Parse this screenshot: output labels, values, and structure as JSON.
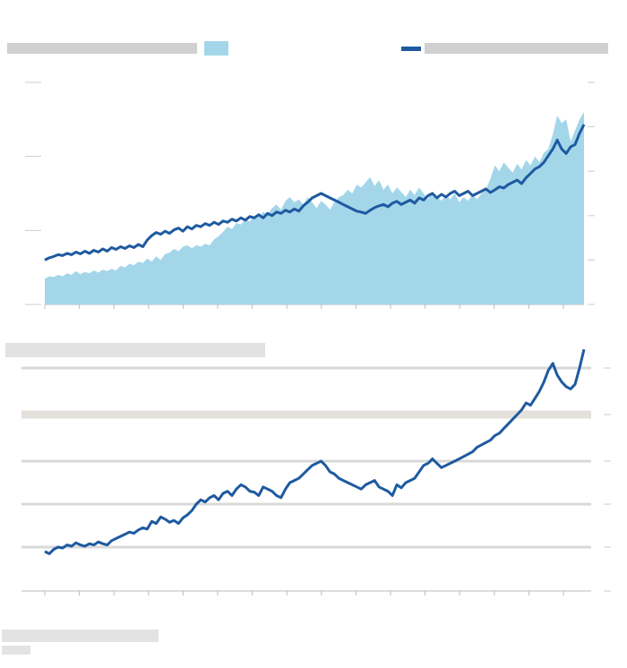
{
  "colors": {
    "background": "#ffffff",
    "area_fill": "#a4d6ea",
    "line": "#1e5aa0",
    "gridline": "#d9d9d9",
    "bottom_band": "#e4e1dc",
    "axis_text": "#555555",
    "legend_bar": "#d0d0d0",
    "title_bar": "#e2e2e2",
    "source_bar": "#e3e3e3"
  },
  "top_chart": {
    "legend": {
      "area_swatch_color": "#a4d6ea",
      "line_swatch_color": "#1e5aa0"
    },
    "left_axis_ticks": [
      "",
      "",
      "",
      ""
    ],
    "right_axis_ticks": [
      "",
      "",
      "",
      "",
      "",
      ""
    ],
    "x_ticks": [
      "",
      "",
      "",
      "",
      "",
      "",
      "",
      "",
      "",
      "",
      "",
      "",
      "",
      "",
      "",
      ""
    ]
  },
  "bottom_chart": {
    "right_axis_ticks": [
      "",
      "",
      "",
      "",
      "",
      ""
    ],
    "x_ticks": [
      "",
      "",
      "",
      "",
      "",
      "",
      "",
      "",
      "",
      "",
      "",
      "",
      "",
      "",
      "",
      ""
    ]
  },
  "chart_data": [
    {
      "type": "area",
      "secondary_type": "line",
      "title": "",
      "xlabel": "",
      "ylabel": "",
      "x": [
        1,
        2,
        3,
        4,
        5,
        6,
        7,
        8,
        9,
        10,
        11,
        12,
        13,
        14,
        15,
        16,
        17,
        18,
        19,
        20,
        21,
        22,
        23,
        24,
        25,
        26,
        27,
        28,
        29,
        30,
        31,
        32,
        33,
        34,
        35,
        36,
        37,
        38,
        39,
        40,
        41,
        42,
        43,
        44,
        45,
        46,
        47,
        48,
        49,
        50,
        51,
        52,
        53,
        54,
        55,
        56,
        57,
        58,
        59,
        60,
        61,
        62,
        63,
        64,
        65,
        66,
        67,
        68,
        69,
        70,
        71,
        72,
        73,
        74,
        75,
        76,
        77,
        78,
        79,
        80,
        81,
        82,
        83,
        84,
        85,
        86,
        87,
        88,
        89,
        90,
        91,
        92,
        93,
        94,
        95,
        96,
        97,
        98,
        99,
        100,
        101,
        102,
        103,
        104,
        105,
        106,
        107,
        108,
        109,
        110,
        111,
        112,
        113,
        114,
        115,
        116,
        117,
        118,
        119,
        120,
        121,
        122
      ],
      "series": [
        {
          "axis": "left",
          "values": [
            0.35,
            0.38,
            0.37,
            0.4,
            0.38,
            0.42,
            0.4,
            0.45,
            0.41,
            0.44,
            0.42,
            0.46,
            0.43,
            0.47,
            0.45,
            0.48,
            0.46,
            0.52,
            0.5,
            0.55,
            0.53,
            0.58,
            0.56,
            0.62,
            0.58,
            0.65,
            0.6,
            0.68,
            0.7,
            0.75,
            0.72,
            0.78,
            0.8,
            0.76,
            0.8,
            0.78,
            0.82,
            0.8,
            0.88,
            0.92,
            0.98,
            1.05,
            1.02,
            1.1,
            1.08,
            1.15,
            1.12,
            1.2,
            1.18,
            1.25,
            1.22,
            1.3,
            1.35,
            1.28,
            1.4,
            1.45,
            1.38,
            1.42,
            1.35,
            1.45,
            1.38,
            1.3,
            1.4,
            1.35,
            1.28,
            1.38,
            1.45,
            1.48,
            1.55,
            1.5,
            1.62,
            1.58,
            1.65,
            1.72,
            1.6,
            1.68,
            1.55,
            1.62,
            1.5,
            1.58,
            1.52,
            1.45,
            1.55,
            1.48,
            1.58,
            1.5,
            1.42,
            1.52,
            1.46,
            1.4,
            1.48,
            1.42,
            1.5,
            1.38,
            1.45,
            1.4,
            1.48,
            1.42,
            1.5,
            1.55,
            1.7,
            1.88,
            1.8,
            1.92,
            1.85,
            1.78,
            1.9,
            1.82,
            1.95,
            1.88,
            2.0,
            1.92,
            2.05,
            2.1,
            2.3,
            2.55,
            2.45,
            2.5,
            2.2,
            2.35,
            2.5,
            2.6
          ]
        },
        {
          "axis": "right",
          "values": [
            1.0,
            1.05,
            1.08,
            1.12,
            1.1,
            1.15,
            1.12,
            1.18,
            1.14,
            1.2,
            1.15,
            1.22,
            1.18,
            1.25,
            1.2,
            1.28,
            1.24,
            1.3,
            1.26,
            1.32,
            1.28,
            1.35,
            1.3,
            1.45,
            1.55,
            1.62,
            1.58,
            1.65,
            1.6,
            1.68,
            1.72,
            1.65,
            1.75,
            1.7,
            1.78,
            1.75,
            1.82,
            1.78,
            1.85,
            1.8,
            1.88,
            1.85,
            1.92,
            1.88,
            1.95,
            1.9,
            1.98,
            1.95,
            2.02,
            1.95,
            2.05,
            2.0,
            2.08,
            2.05,
            2.12,
            2.08,
            2.15,
            2.1,
            2.22,
            2.3,
            2.4,
            2.45,
            2.5,
            2.45,
            2.4,
            2.35,
            2.3,
            2.25,
            2.2,
            2.15,
            2.1,
            2.08,
            2.05,
            2.12,
            2.18,
            2.22,
            2.25,
            2.2,
            2.28,
            2.32,
            2.25,
            2.3,
            2.35,
            2.28,
            2.4,
            2.35,
            2.45,
            2.5,
            2.4,
            2.48,
            2.42,
            2.5,
            2.55,
            2.45,
            2.5,
            2.55,
            2.45,
            2.5,
            2.55,
            2.6,
            2.52,
            2.58,
            2.65,
            2.62,
            2.7,
            2.75,
            2.8,
            2.72,
            2.85,
            2.95,
            3.05,
            3.1,
            3.2,
            3.35,
            3.5,
            3.7,
            3.5,
            3.4,
            3.55,
            3.6,
            3.85,
            4.05
          ]
        }
      ]
    },
    {
      "type": "line",
      "title": "",
      "xlabel": "",
      "ylabel": "",
      "x": [
        1,
        2,
        3,
        4,
        5,
        6,
        7,
        8,
        9,
        10,
        11,
        12,
        13,
        14,
        15,
        16,
        17,
        18,
        19,
        20,
        21,
        22,
        23,
        24,
        25,
        26,
        27,
        28,
        29,
        30,
        31,
        32,
        33,
        34,
        35,
        36,
        37,
        38,
        39,
        40,
        41,
        42,
        43,
        44,
        45,
        46,
        47,
        48,
        49,
        50,
        51,
        52,
        53,
        54,
        55,
        56,
        57,
        58,
        59,
        60,
        61,
        62,
        63,
        64,
        65,
        66,
        67,
        68,
        69,
        70,
        71,
        72,
        73,
        74,
        75,
        76,
        77,
        78,
        79,
        80,
        81,
        82,
        83,
        84,
        85,
        86,
        87,
        88,
        89,
        90,
        91,
        92,
        93,
        94,
        95,
        96,
        97,
        98,
        99,
        100,
        101,
        102,
        103,
        104,
        105,
        106,
        107,
        108,
        109,
        110,
        111,
        112,
        113,
        114,
        115,
        116,
        117,
        118,
        119,
        120,
        121,
        122
      ],
      "series": [
        {
          "values": [
            0.9,
            0.85,
            0.95,
            1.0,
            0.98,
            1.05,
            1.02,
            1.1,
            1.05,
            1.02,
            1.08,
            1.05,
            1.12,
            1.08,
            1.05,
            1.15,
            1.2,
            1.25,
            1.3,
            1.35,
            1.32,
            1.4,
            1.45,
            1.42,
            1.6,
            1.55,
            1.7,
            1.65,
            1.58,
            1.62,
            1.55,
            1.68,
            1.75,
            1.85,
            2.0,
            2.1,
            2.05,
            2.15,
            2.2,
            2.1,
            2.25,
            2.3,
            2.2,
            2.35,
            2.45,
            2.4,
            2.3,
            2.28,
            2.2,
            2.4,
            2.35,
            2.3,
            2.2,
            2.15,
            2.35,
            2.5,
            2.55,
            2.6,
            2.7,
            2.8,
            2.9,
            2.95,
            3.0,
            2.9,
            2.75,
            2.7,
            2.6,
            2.55,
            2.5,
            2.45,
            2.4,
            2.35,
            2.45,
            2.5,
            2.55,
            2.4,
            2.35,
            2.3,
            2.2,
            2.45,
            2.38,
            2.5,
            2.55,
            2.6,
            2.75,
            2.9,
            2.95,
            3.05,
            2.95,
            2.85,
            2.9,
            2.95,
            3.0,
            3.05,
            3.1,
            3.15,
            3.2,
            3.3,
            3.35,
            3.4,
            3.45,
            3.55,
            3.6,
            3.7,
            3.8,
            3.9,
            4.0,
            4.1,
            4.25,
            4.2,
            4.35,
            4.5,
            4.7,
            4.95,
            5.1,
            4.85,
            4.7,
            4.6,
            4.55,
            4.65,
            5.0,
            5.4
          ]
        }
      ]
    }
  ]
}
